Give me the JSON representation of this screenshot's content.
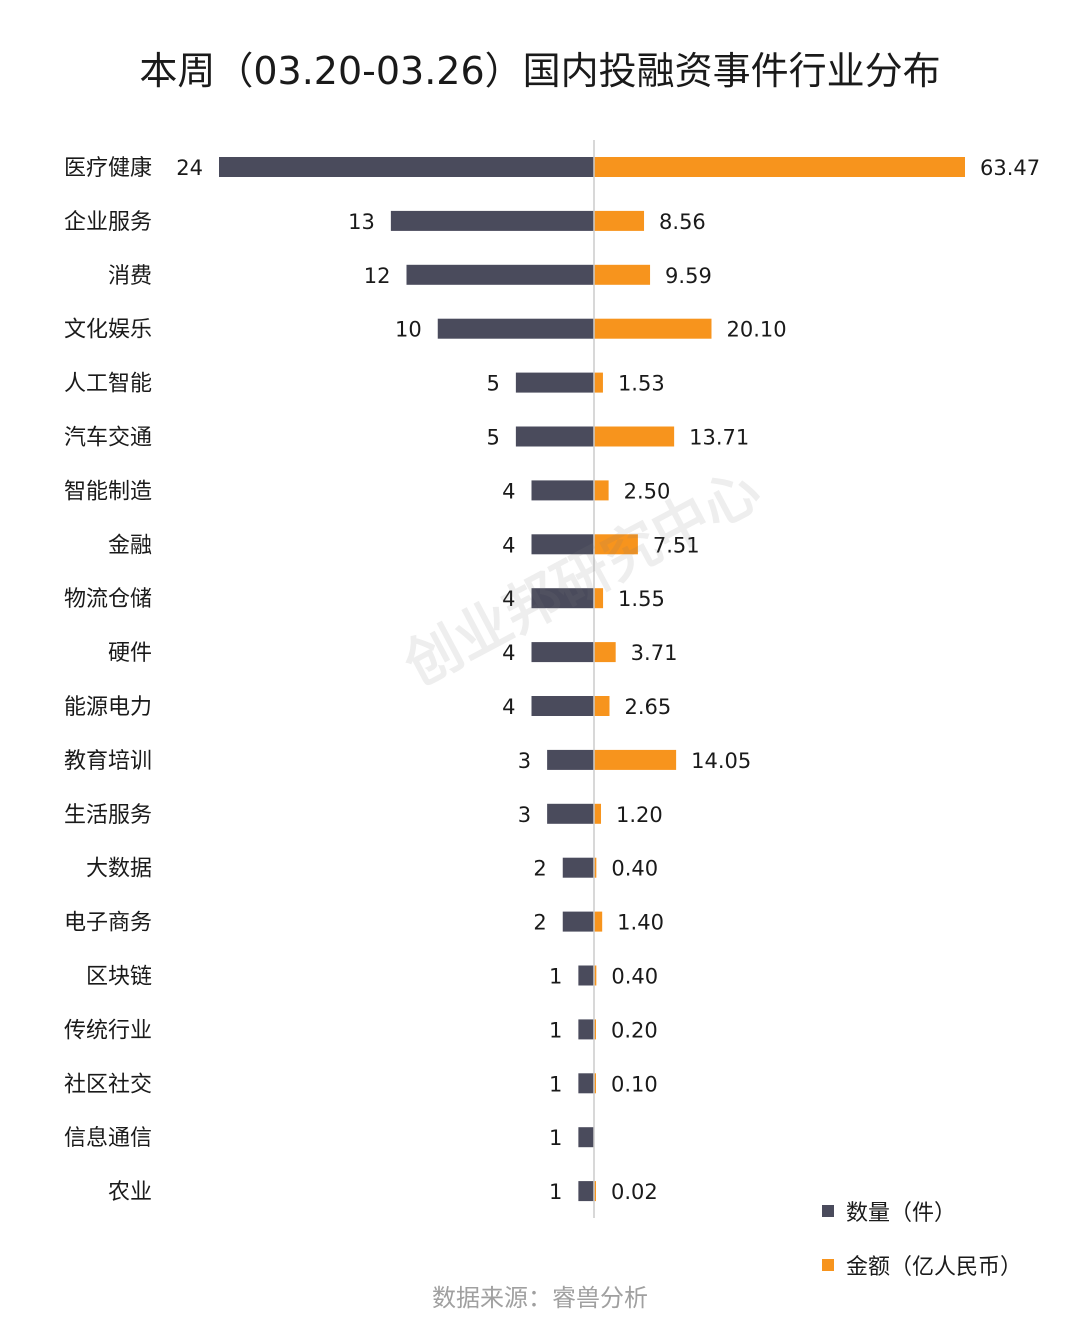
{
  "chart_data": {
    "type": "bar",
    "orientation": "horizontal-diverging",
    "title": "本周（03.20-03.26）国内投融资事件行业分布",
    "categories": [
      "医疗健康",
      "企业服务",
      "消费",
      "文化娱乐",
      "人工智能",
      "汽车交通",
      "智能制造",
      "金融",
      "物流仓储",
      "硬件",
      "能源电力",
      "教育培训",
      "生活服务",
      "大数据",
      "电子商务",
      "区块链",
      "传统行业",
      "社区社交",
      "信息通信",
      "农业"
    ],
    "series": [
      {
        "name": "数量（件）",
        "color": "#4a4b5c",
        "values": [
          24,
          13,
          12,
          10,
          5,
          5,
          4,
          4,
          4,
          4,
          4,
          3,
          3,
          2,
          2,
          1,
          1,
          1,
          1,
          1
        ],
        "labels": [
          "24",
          "13",
          "12",
          "10",
          "5",
          "5",
          "4",
          "4",
          "4",
          "4",
          "4",
          "3",
          "3",
          "2",
          "2",
          "1",
          "1",
          "1",
          "1",
          "1"
        ]
      },
      {
        "name": "金额（亿人民币）",
        "color": "#f7941d",
        "values": [
          63.47,
          8.56,
          9.59,
          20.1,
          1.53,
          13.71,
          2.5,
          7.51,
          1.55,
          3.71,
          2.65,
          14.05,
          1.2,
          0.4,
          1.4,
          0.4,
          0.2,
          0.1,
          null,
          0.02
        ],
        "labels": [
          "63.47",
          "8.56",
          "9.59",
          "20.10",
          "1.53",
          "13.71",
          "2.50",
          "7.51",
          "1.55",
          "3.71",
          "2.65",
          "14.05",
          "1.20",
          "0.40",
          "1.40",
          "0.40",
          "0.20",
          "0.10",
          "",
          "0.02"
        ]
      }
    ],
    "legend_position": "bottom-right",
    "grid": false
  },
  "watermark": "创业邦研究中心",
  "source": "数据来源：睿兽分析"
}
